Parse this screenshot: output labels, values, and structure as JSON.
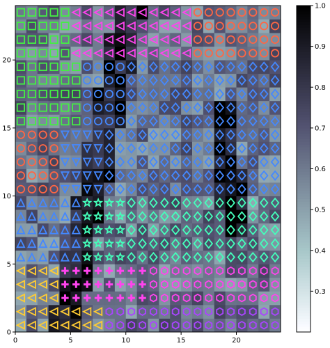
{
  "chart_data": {
    "type": "heatmap",
    "title": "",
    "xlabel": "",
    "ylabel": "",
    "xlim": [
      0,
      24
    ],
    "ylim": [
      0,
      24
    ],
    "x_ticks": [
      "0",
      "5",
      "10",
      "15",
      "20"
    ],
    "x_tick_values": [
      0,
      5,
      10,
      15,
      20
    ],
    "y_ticks": [
      "0",
      "5",
      "10",
      "15",
      "20"
    ],
    "y_tick_values": [
      0,
      5,
      10,
      15,
      20
    ],
    "grid": false,
    "grid_size": [
      24,
      24
    ],
    "colormap": "bone_r",
    "colorbar": {
      "range": [
        0.2,
        1.0
      ],
      "ticks": [
        "0.3",
        "0.4",
        "0.5",
        "0.6",
        "0.7",
        "0.8",
        "0.9",
        "1.0"
      ],
      "tick_values": [
        0.3,
        0.4,
        0.5,
        0.6,
        0.7,
        0.8,
        0.9,
        1.0
      ]
    },
    "marker_overlay": {
      "description_shapes": [
        "square",
        "star",
        "circle",
        "diamond",
        "triangle-up",
        "triangle-left",
        "hexagon",
        "plus",
        "triangle-down",
        "octagon"
      ],
      "colors": [
        "#44ee44",
        "#ff44ee",
        "#44ffbb",
        "#4488ff",
        "#ffcc33",
        "#ff6644",
        "#aa44ff"
      ]
    }
  }
}
